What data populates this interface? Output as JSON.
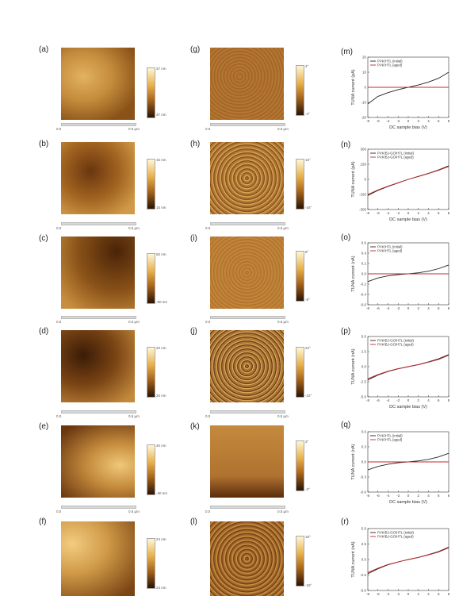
{
  "labels": [
    "(a)",
    "(b)",
    "(c)",
    "(d)",
    "(e)",
    "(f)",
    "(g)",
    "(h)",
    "(i)",
    "(j)",
    "(k)",
    "(l)",
    "(m)",
    "(n)",
    "(o)",
    "(p)",
    "(q)",
    "(r)"
  ],
  "height_scales": [
    {
      "top": "37 nm",
      "bottom": "37 nm"
    },
    {
      "top": "15 nm",
      "bottom": "15 nm"
    },
    {
      "top": "50 nm",
      "bottom": "-50 nm"
    },
    {
      "top": "20 nm",
      "bottom": "20 nm"
    },
    {
      "top": "40 nm",
      "bottom": "-40 nm"
    },
    {
      "top": "24 nm",
      "bottom": "24 nm"
    }
  ],
  "phase_scales": [
    {
      "top": "4°",
      "bottom": "-4°"
    },
    {
      "top": "16°",
      "bottom": "-16°"
    },
    {
      "top": "8°",
      "bottom": "-8°"
    },
    {
      "top": "22°",
      "bottom": "-22°"
    },
    {
      "top": "3°",
      "bottom": "-3°"
    },
    {
      "top": "18°",
      "bottom": "-18°"
    }
  ],
  "scalebar": {
    "left": "0.0",
    "right": "0.5 µm"
  },
  "afm_colors": {
    "light": "#e6b866",
    "mid": "#b57a2c",
    "dark": "#3a1c06"
  },
  "series_colors": {
    "initial": "#222222",
    "aged": "#c0282c"
  },
  "chart_data": [
    {
      "type": "line",
      "xlabel": "DC sample bias (V)",
      "ylabel": "TUNA current (pA)",
      "xlim": [
        -8,
        8
      ],
      "ylim": [
        -20,
        20
      ],
      "xticks": [
        "-8",
        "-6",
        "-4",
        "-2",
        "0",
        "2",
        "4",
        "6",
        "8"
      ],
      "yticks": [
        "20",
        "10",
        "0",
        "-10",
        "-20"
      ],
      "series": [
        {
          "name": "PVK/HTL (initial)",
          "x": [
            -8,
            -6,
            -4,
            -2,
            0,
            2,
            4,
            6,
            8
          ],
          "y": [
            -11,
            -6,
            -3.5,
            -1.5,
            0,
            1.5,
            3.5,
            6,
            10
          ]
        },
        {
          "name": "PVK/HTL (aged)",
          "x": [
            -8,
            -6,
            -4,
            -2,
            0,
            2,
            4,
            6,
            8
          ],
          "y": [
            0,
            0,
            0,
            0,
            0,
            0,
            0,
            0,
            0
          ]
        }
      ]
    },
    {
      "type": "line",
      "xlabel": "DC sample bias (V)",
      "ylabel": "TUNA current (pA)",
      "xlim": [
        -8,
        8
      ],
      "ylim": [
        -300,
        300
      ],
      "xticks": [
        "-8",
        "-6",
        "-4",
        "-2",
        "0",
        "2",
        "4",
        "6",
        "8"
      ],
      "yticks": [
        "300",
        "150",
        "0",
        "-150",
        "-300"
      ],
      "series": [
        {
          "name": "PVK/BJ-GO/HTL (initial)",
          "x": [
            -8,
            -6,
            -4,
            -2,
            0,
            2,
            4,
            6,
            8
          ],
          "y": [
            -160,
            -110,
            -70,
            -35,
            0,
            30,
            60,
            95,
            135
          ]
        },
        {
          "name": "PVK/BJ-GO/HTL (aged)",
          "x": [
            -8,
            -6,
            -4,
            -2,
            0,
            2,
            4,
            6,
            8
          ],
          "y": [
            -150,
            -105,
            -68,
            -33,
            0,
            28,
            58,
            90,
            128
          ]
        }
      ]
    },
    {
      "type": "line",
      "xlabel": "",
      "ylabel": "TUNA current (nA)",
      "xlim": [
        -8,
        8
      ],
      "ylim": [
        -0.6,
        0.6
      ],
      "xticks": [
        "-8",
        "-6",
        "-4",
        "-2",
        "0",
        "2",
        "4",
        "6",
        "8"
      ],
      "yticks": [
        "0.6",
        "0.4",
        "0.2",
        "0.0",
        "-0.2",
        "-0.4",
        "-0.6"
      ],
      "series": [
        {
          "name": "PVK/HTL (initial)",
          "x": [
            -8,
            -6,
            -4,
            -2,
            0,
            2,
            4,
            6,
            8
          ],
          "y": [
            -0.15,
            -0.08,
            -0.04,
            -0.015,
            0,
            0.02,
            0.05,
            0.1,
            0.17
          ]
        },
        {
          "name": "PVK/HTL (aged)",
          "x": [
            -8,
            -6,
            -4,
            -2,
            0,
            2,
            4,
            6,
            8
          ],
          "y": [
            0,
            0,
            0,
            0,
            0,
            0,
            0,
            0,
            0
          ]
        }
      ]
    },
    {
      "type": "line",
      "xlabel": "DC sample bias (V)",
      "ylabel": "TUNA current (nA)",
      "xlim": [
        -8,
        8
      ],
      "ylim": [
        -5,
        5
      ],
      "xticks": [
        "-8",
        "-6",
        "-4",
        "-2",
        "0",
        "2",
        "4",
        "6",
        "8"
      ],
      "yticks": [
        "5.0",
        "2.5",
        "0.0",
        "-2.5",
        "-5.0"
      ],
      "series": [
        {
          "name": "PVK/BJ-GO/HTL (initial)",
          "x": [
            -8,
            -6,
            -4,
            -2,
            0,
            2,
            4,
            6,
            8
          ],
          "y": [
            -2.2,
            -1.4,
            -0.8,
            -0.35,
            0,
            0.35,
            0.8,
            1.3,
            2.0
          ]
        },
        {
          "name": "PVK/BJ-GO/HTL (aged)",
          "x": [
            -8,
            -6,
            -4,
            -2,
            0,
            2,
            4,
            6,
            8
          ],
          "y": [
            -2.0,
            -1.3,
            -0.75,
            -0.33,
            0,
            0.33,
            0.75,
            1.2,
            1.9
          ]
        }
      ]
    },
    {
      "type": "line",
      "xlabel": "DC sample bias (V)",
      "ylabel": "TUNA current (nA)",
      "xlim": [
        -8,
        8
      ],
      "ylim": [
        -0.6,
        0.6
      ],
      "xticks": [
        "-8",
        "-6",
        "-4",
        "-2",
        "0",
        "2",
        "4",
        "6",
        "8"
      ],
      "yticks": [
        "0.6",
        "0.3",
        "0.0",
        "-0.3",
        "-0.6"
      ],
      "series": [
        {
          "name": "PVK/HTL (initial)",
          "x": [
            -8,
            -6,
            -4,
            -2,
            0,
            2,
            4,
            6,
            8
          ],
          "y": [
            -0.16,
            -0.09,
            -0.045,
            -0.015,
            0,
            0.02,
            0.05,
            0.1,
            0.17
          ]
        },
        {
          "name": "PVK/HTL (aged)",
          "x": [
            -8,
            -6,
            -4,
            -2,
            0,
            2,
            4,
            6,
            8
          ],
          "y": [
            0,
            0,
            0,
            0,
            0,
            0,
            0,
            0,
            0
          ]
        }
      ]
    },
    {
      "type": "line",
      "xlabel": "",
      "ylabel": "TUNA current (nA)",
      "xlim": [
        -8,
        8
      ],
      "ylim": [
        -5,
        5
      ],
      "xticks": [
        "-8",
        "-6",
        "-4",
        "-2",
        "0",
        "2",
        "4",
        "6",
        "8"
      ],
      "yticks": [
        "5.0",
        "2.5",
        "0.0",
        "-2.5",
        "-5.0"
      ],
      "series": [
        {
          "name": "PVK/BJ-GO/HTL (initial)",
          "x": [
            -8,
            -6,
            -4,
            -2,
            0,
            2,
            4,
            6,
            8
          ],
          "y": [
            -2.3,
            -1.5,
            -0.85,
            -0.4,
            0,
            0.35,
            0.8,
            1.3,
            2.0
          ]
        },
        {
          "name": "PVK/BJ-GO/HTL (aged)",
          "x": [
            -8,
            -6,
            -4,
            -2,
            0,
            2,
            4,
            6,
            8
          ],
          "y": [
            -2.1,
            -1.4,
            -0.8,
            -0.38,
            0,
            0.33,
            0.75,
            1.2,
            1.9
          ]
        }
      ]
    }
  ]
}
